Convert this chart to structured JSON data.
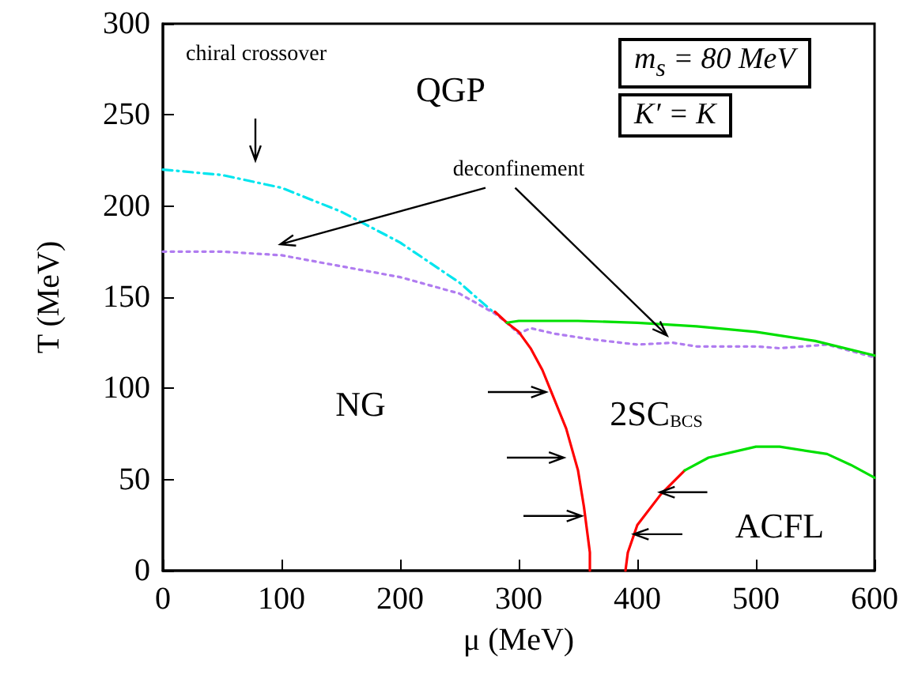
{
  "chart_data": {
    "type": "line",
    "xlabel": "μ (MeV)",
    "ylabel": "T (MeV)",
    "xlim": [
      0,
      600
    ],
    "xticks": [
      0,
      100,
      200,
      300,
      400,
      500,
      600
    ],
    "ylim": [
      0,
      300
    ],
    "yticks": [
      0,
      50,
      100,
      150,
      200,
      250,
      300
    ],
    "grid": false,
    "marker": "none",
    "series": [
      {
        "color": "#00e5ee",
        "line_style": "dashed",
        "x": [
          0,
          50,
          100,
          150,
          200,
          250,
          280
        ],
        "values": [
          220,
          217,
          210,
          197,
          180,
          158,
          141
        ]
      },
      {
        "color": "#b07cf0",
        "line_style": "dotted",
        "x": [
          0,
          50,
          100,
          150,
          200,
          250,
          280,
          290,
          300,
          310,
          330,
          360,
          400,
          430,
          450,
          500,
          520,
          560,
          600
        ],
        "values": [
          175,
          175,
          173,
          167,
          161,
          152,
          141,
          136,
          130,
          133,
          130,
          127,
          124,
          125,
          123,
          123,
          122,
          124,
          117
        ]
      },
      {
        "color": "#ff0000",
        "line_style": "solid",
        "x": [
          280,
          290,
          300,
          310,
          320,
          330,
          340,
          350,
          355,
          360,
          360
        ],
        "values": [
          142,
          136,
          131,
          122,
          110,
          94,
          78,
          55,
          35,
          10,
          0
        ]
      },
      {
        "color": "#ff0000",
        "line_style": "solid",
        "x": [
          390,
          392,
          400,
          420,
          440
        ],
        "values": [
          0,
          10,
          25,
          42,
          55
        ]
      },
      {
        "color": "#00e000",
        "line_style": "solid",
        "x": [
          290,
          300,
          350,
          400,
          450,
          500,
          550,
          600
        ],
        "values": [
          136,
          137,
          137,
          136,
          134,
          131,
          126,
          118
        ]
      },
      {
        "color": "#00e000",
        "line_style": "solid",
        "x": [
          440,
          460,
          500,
          520,
          560,
          580,
          600
        ],
        "values": [
          55,
          62,
          68,
          68,
          64,
          58,
          51
        ]
      }
    ],
    "annotations": [
      "QGP",
      "NG",
      "2SC$_{BCS}$",
      "ACFL",
      "chiral crossover",
      "deconfinement",
      "m$_{s}$ = 80 MeV",
      "K′ = K"
    ]
  }
}
